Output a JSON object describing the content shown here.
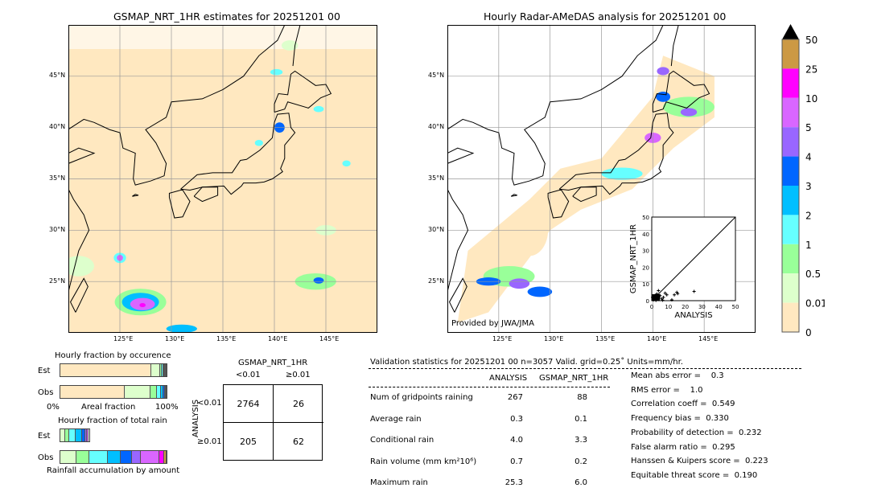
{
  "left_map": {
    "title": "GSMAP_NRT_1HR estimates for 20251201 00"
  },
  "right_map": {
    "title": "Hourly Radar-AMeDAS analysis for 20251201 00",
    "credit": "Provided by JWA/JMA"
  },
  "lon_ticks": [
    "125°E",
    "130°E",
    "135°E",
    "140°E",
    "145°E"
  ],
  "lat_ticks": [
    "45°N",
    "40°N",
    "35°N",
    "30°N",
    "25°N"
  ],
  "colorbar": {
    "labels": [
      "50",
      "25",
      "10",
      "5",
      "4",
      "3",
      "2",
      "1",
      "0.5",
      "0.01",
      "0"
    ],
    "colors": [
      "#cc9944",
      "#ff00ff",
      "#d966ff",
      "#9966ff",
      "#0066ff",
      "#00bfff",
      "#66ffff",
      "#99ff99",
      "#ddffcc",
      "#ffe8c0"
    ]
  },
  "scatter": {
    "xlabel": "ANALYSIS",
    "ylabel": "GSMAP_NRT_1HR",
    "ticks": [
      "0",
      "10",
      "20",
      "30",
      "40",
      "50"
    ],
    "points": [
      [
        25.3,
        5.5
      ],
      [
        15,
        5
      ],
      [
        15.5,
        4.2
      ],
      [
        13.5,
        3.5
      ],
      [
        12,
        0.5
      ],
      [
        8,
        4.5
      ],
      [
        4,
        6
      ],
      [
        5,
        3
      ],
      [
        3,
        2
      ],
      [
        2,
        1
      ],
      [
        1,
        0.5
      ],
      [
        6,
        1
      ],
      [
        7,
        2
      ],
      [
        3,
        4
      ],
      [
        1.5,
        3
      ],
      [
        9,
        3.5
      ],
      [
        2.5,
        0.2
      ],
      [
        4.5,
        1.5
      ],
      [
        0.5,
        2
      ],
      [
        6.5,
        0.3
      ]
    ]
  },
  "occurrence": {
    "title": "Hourly fraction by occurence",
    "est_label": "Est",
    "obs_label": "Obs",
    "xlabel": "Areal fraction",
    "x0": "0%",
    "x1": "100%",
    "est": [
      86,
      9,
      1.5,
      1,
      1,
      0.5,
      0.5,
      0.5
    ],
    "obs": [
      61,
      24,
      6,
      4,
      2,
      1.5,
      1,
      0.5
    ]
  },
  "total_rain": {
    "title": "Hourly fraction of total rain",
    "est_label": "Est",
    "obs_label": "Obs",
    "xlabel": "Rainfall accumulation by amount",
    "est_total_pct": 28,
    "est": [
      16,
      16,
      22,
      22,
      10,
      6,
      8
    ],
    "obs": [
      15,
      12,
      17,
      12,
      11,
      8,
      17,
      5,
      2
    ]
  },
  "contingency": {
    "title": "GSMAP_NRT_1HR",
    "col1": "<0.01",
    "col2": "≥0.01",
    "row_axis": "ANALYSIS",
    "row1": "<0.01",
    "row2": "≥0.01",
    "a": "2764",
    "b": "26",
    "c": "205",
    "d": "62"
  },
  "stats": {
    "header": "Validation statistics for 20251201 00  n=3057 Valid. grid=0.25˚ Units=mm/hr.",
    "col_analysis": "ANALYSIS",
    "col_gsmap": "GSMAP_NRT_1HR",
    "rows": [
      {
        "label": "Num of gridpoints raining",
        "a": "267",
        "g": "88"
      },
      {
        "label": "Average rain",
        "a": "0.3",
        "g": "0.1"
      },
      {
        "label": "Conditional rain",
        "a": "4.0",
        "g": "3.3"
      },
      {
        "label": "Rain volume (mm km²10⁶)",
        "a": "0.7",
        "g": "0.2"
      },
      {
        "label": "Maximum rain",
        "a": "25.3",
        "g": "6.0"
      }
    ],
    "scores": [
      "Mean abs error =    0.3",
      "RMS error =    1.0",
      "Correlation coeff =  0.549",
      "Frequency bias =  0.330",
      "Probability of detection =  0.232",
      "False alarm ratio =  0.295",
      "Hanssen & Kuipers score =  0.223",
      "Equitable threat score =  0.190"
    ]
  }
}
